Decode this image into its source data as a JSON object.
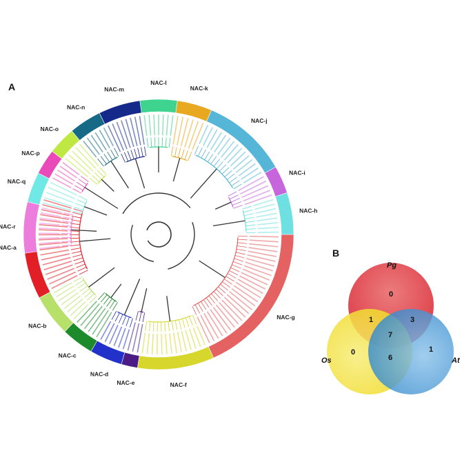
{
  "panel_a": {
    "letter": "A",
    "clades": [
      {
        "label": "NAC-a",
        "color": "#e21e26"
      },
      {
        "label": "NAC-b",
        "color": "#b7e06b"
      },
      {
        "label": "NAC-c",
        "color": "#1d8a2c"
      },
      {
        "label": "NAC-d",
        "color": "#2131c9"
      },
      {
        "label": "NAC-e",
        "color": "#4b1c86"
      },
      {
        "label": "NAC-f",
        "color": "#d6d62c"
      },
      {
        "label": "NAC-g",
        "color": "#e46262"
      },
      {
        "label": "NAC-h",
        "color": "#6ee0e2"
      },
      {
        "label": "NAC-i",
        "color": "#c765dd"
      },
      {
        "label": "NAC-j",
        "color": "#56b6d8"
      },
      {
        "label": "NAC-k",
        "color": "#e8a820"
      },
      {
        "label": "NAC-l",
        "color": "#3fd390"
      },
      {
        "label": "NAC-m",
        "color": "#15298a"
      },
      {
        "label": "NAC-n",
        "color": "#176a86"
      },
      {
        "label": "NAC-o",
        "color": "#bfe843"
      },
      {
        "label": "NAC-p",
        "color": "#ea49b9"
      },
      {
        "label": "NAC-q",
        "color": "#70e8e5"
      },
      {
        "label": "NAC-r",
        "color": "#ec7ddd"
      }
    ]
  },
  "panel_b": {
    "letter": "B",
    "sets": [
      {
        "label": "Pg",
        "color": "#e02a35"
      },
      {
        "label": "Os",
        "color": "#f2e02e"
      },
      {
        "label": "At",
        "color": "#3a8fd1"
      }
    ],
    "counts": {
      "pg_only": "0",
      "os_only": "0",
      "at_only": "1",
      "pg_os": "1",
      "pg_at": "3",
      "os_at": "6",
      "all": "7"
    }
  }
}
